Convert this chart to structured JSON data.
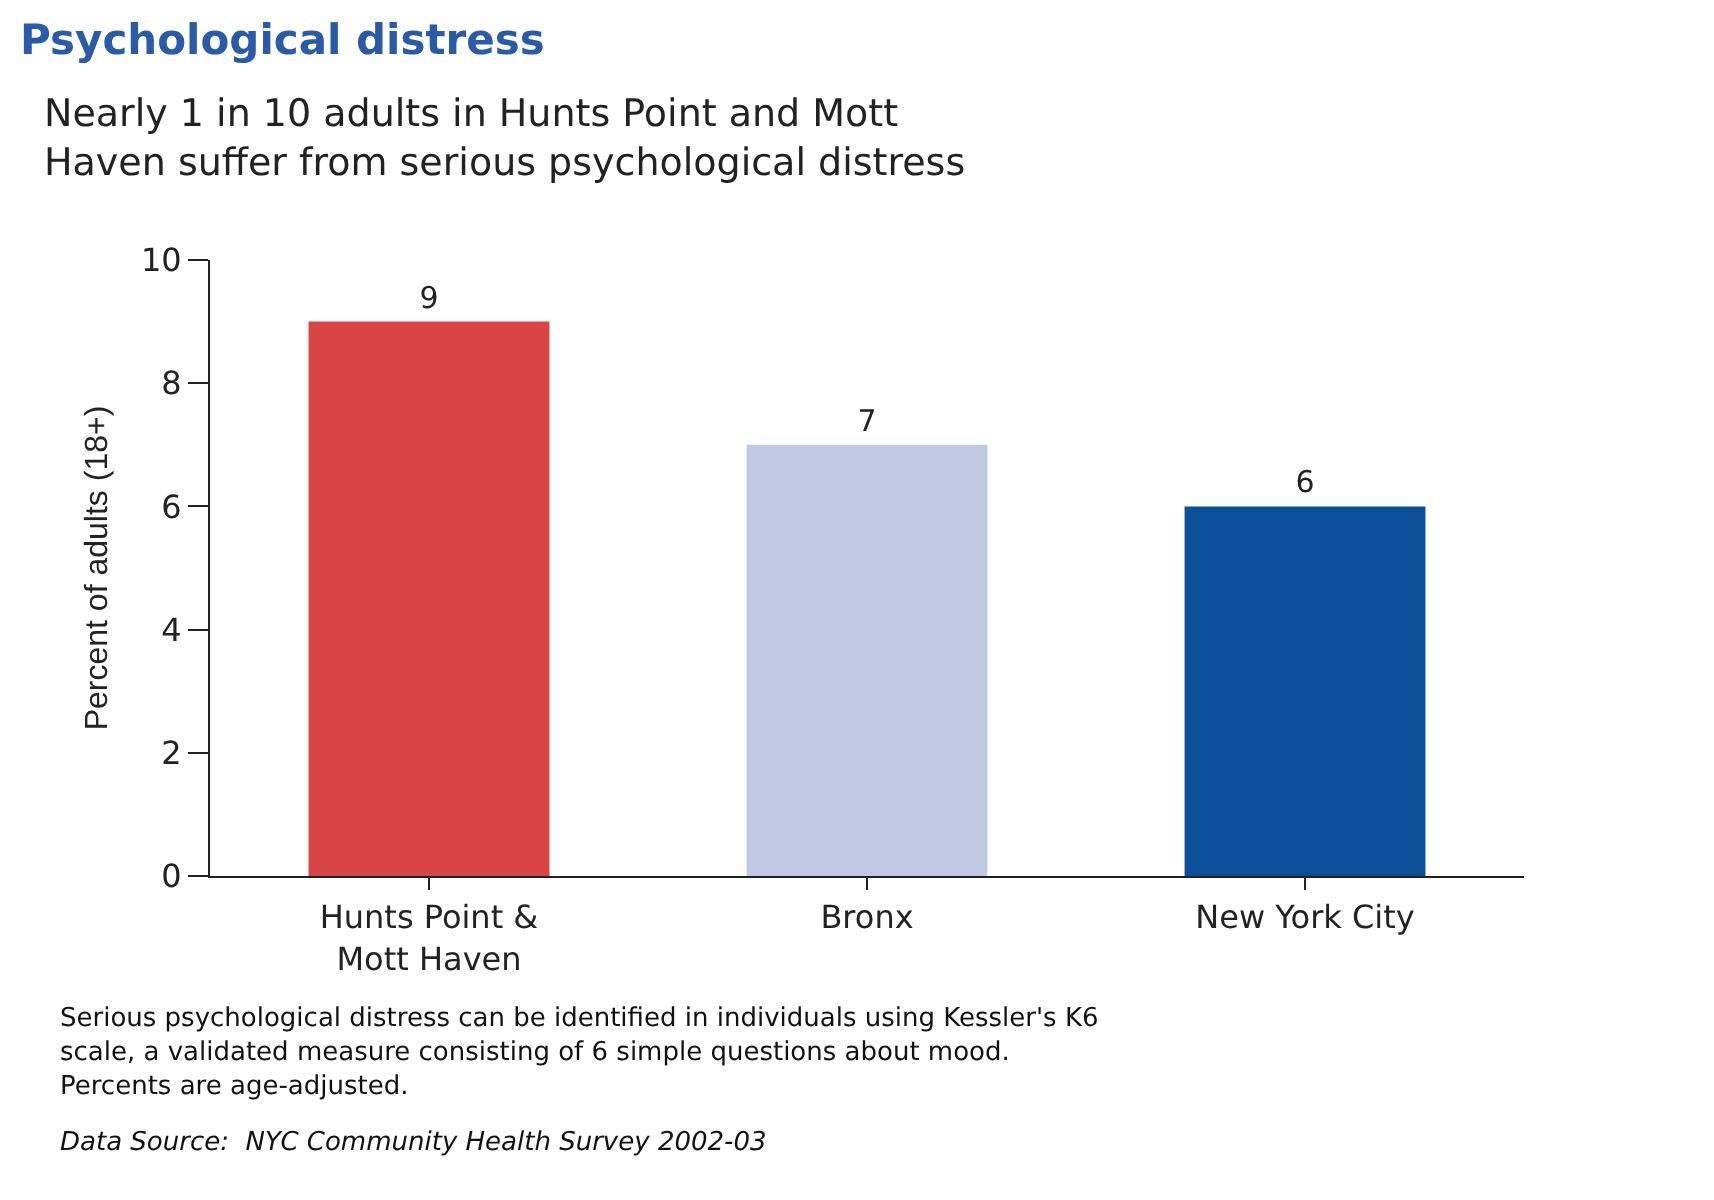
{
  "chart_data": {
    "type": "bar",
    "title": "Psychological distress",
    "subtitle": "Nearly 1 in 10 adults in Hunts Point and Mott\nHaven suffer from serious psychological distress",
    "ylabel": "Percent of adults (18+)",
    "categories": [
      "Hunts Point &\nMott Haven",
      "Bronx",
      "New York City"
    ],
    "values": [
      9,
      7,
      6
    ],
    "colors": [
      "#d94545",
      "#c0c8e4",
      "#0a4f98"
    ],
    "ylim": [
      0,
      10
    ],
    "yticks": [
      0,
      2,
      4,
      6,
      8,
      10
    ],
    "data_labels": true,
    "annotations": [
      "Serious psychological distress can be identified in individuals using Kessler's K6\nscale, a validated measure consisting of 6 simple questions about mood.\nPercents are age-adjusted.",
      "Data Source:  NYC Community Health Survey 2002-03"
    ]
  }
}
